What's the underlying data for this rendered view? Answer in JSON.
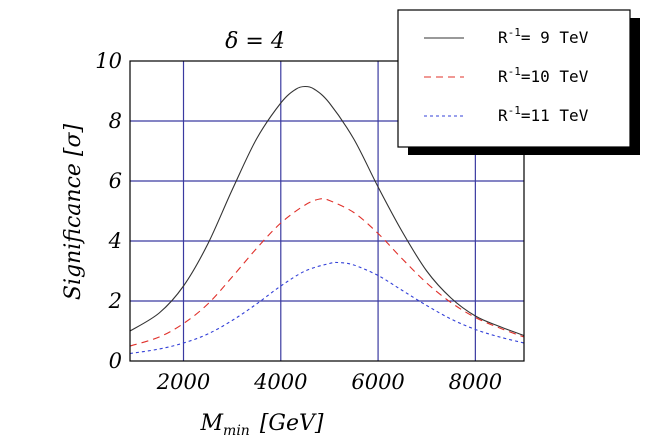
{
  "chart_data": {
    "type": "line",
    "title": "δ = 4",
    "xlabel": "M_min  [GeV]",
    "xlabel_main": "M",
    "xlabel_sub": "min",
    "xlabel_unit": "[GeV]",
    "ylabel": "Significance  [σ]",
    "xlim": [
      900,
      9000
    ],
    "ylim": [
      0,
      10
    ],
    "xticks": [
      2000,
      4000,
      6000,
      8000
    ],
    "xtick_labels": [
      "2000",
      "4000",
      "6000",
      "8000"
    ],
    "yticks": [
      0,
      2,
      4,
      6,
      8,
      10
    ],
    "ytick_labels": [
      "0",
      "2",
      "4",
      "6",
      "8",
      "10"
    ],
    "grid": true,
    "legend_position": "top-right",
    "series": [
      {
        "name": "R-1= 9 TeV",
        "label_prefix": "R",
        "label_sup": "-1",
        "label_suffix": "=  9 TeV",
        "color": "#333333",
        "style": "solid",
        "x": [
          900,
          1500,
          2000,
          2500,
          3000,
          3500,
          4000,
          4300,
          4500,
          4700,
          5000,
          5500,
          6000,
          6500,
          7000,
          7500,
          8000,
          8500,
          9000
        ],
        "y": [
          1.0,
          1.6,
          2.5,
          3.9,
          5.7,
          7.4,
          8.6,
          9.05,
          9.15,
          9.05,
          8.6,
          7.4,
          5.8,
          4.3,
          3.0,
          2.1,
          1.5,
          1.15,
          0.85
        ]
      },
      {
        "name": "R-1=10 TeV",
        "label_prefix": "R",
        "label_sup": "-1",
        "label_suffix": "=10 TeV",
        "color": "#e0302a",
        "style": "dashed",
        "x": [
          900,
          1500,
          2000,
          2500,
          3000,
          3500,
          4000,
          4500,
          4800,
          5000,
          5500,
          6000,
          6500,
          7000,
          7500,
          8000,
          8500,
          9000
        ],
        "y": [
          0.5,
          0.8,
          1.25,
          1.9,
          2.8,
          3.75,
          4.6,
          5.2,
          5.4,
          5.35,
          4.95,
          4.25,
          3.4,
          2.6,
          1.95,
          1.45,
          1.1,
          0.8
        ]
      },
      {
        "name": "R-1=11 TeV",
        "label_prefix": "R",
        "label_sup": "-1",
        "label_suffix": "=11 TeV",
        "color": "#3340d8",
        "style": "dotted",
        "x": [
          900,
          1500,
          2000,
          2500,
          3000,
          3500,
          4000,
          4500,
          5000,
          5200,
          5500,
          6000,
          6500,
          7000,
          7500,
          8000,
          8500,
          9000
        ],
        "y": [
          0.25,
          0.4,
          0.6,
          0.9,
          1.35,
          1.9,
          2.5,
          3.0,
          3.25,
          3.28,
          3.2,
          2.85,
          2.35,
          1.85,
          1.4,
          1.05,
          0.8,
          0.6
        ]
      }
    ]
  }
}
